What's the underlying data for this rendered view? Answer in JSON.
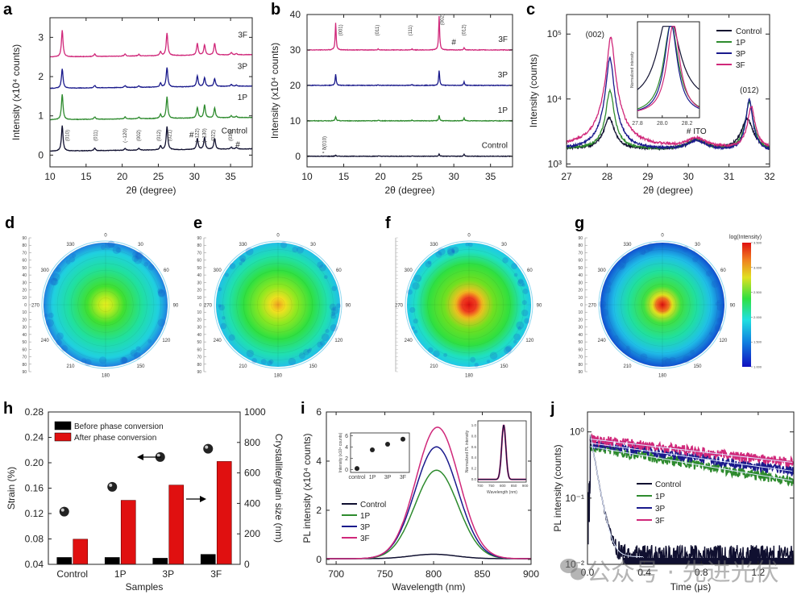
{
  "figure": {
    "watermark": "公众号 · 先进光伏",
    "panel_letters": [
      "a",
      "b",
      "c",
      "d",
      "e",
      "f",
      "g",
      "h",
      "i",
      "j"
    ]
  },
  "colors": {
    "Control": "#101030",
    "1P": "#2e8b2e",
    "3P": "#1a1a8c",
    "3F": "#d0287a",
    "bar_before": "#000000",
    "bar_after": "#e01010"
  },
  "chart_data": [
    {
      "id": "a",
      "type": "line",
      "title": "",
      "xlabel": "2θ (degree)",
      "ylabel": "Intensity (x10⁴ counts)",
      "xlim": [
        10,
        38
      ],
      "ylim": [
        -0.3,
        3.5
      ],
      "xticks": [
        10,
        15,
        20,
        25,
        30,
        35
      ],
      "yticks": [
        0,
        1,
        2,
        3
      ],
      "peaks_2theta": [
        11.7,
        16.2,
        20.4,
        22.3,
        25.3,
        26.2,
        30.4,
        31.4,
        32.8,
        35.1,
        35.8
      ],
      "series": [
        {
          "name": "Control",
          "baseline": 0.1,
          "peak_heights": [
            0.65,
            0.07,
            0.05,
            0.05,
            0.1,
            0.6,
            0.28,
            0.3,
            0.28,
            0.05,
            0.04
          ],
          "label": "Control"
        },
        {
          "name": "1P",
          "baseline": 0.9,
          "peak_heights": [
            0.65,
            0.06,
            0.05,
            0.04,
            0.1,
            0.55,
            0.27,
            0.33,
            0.25,
            0.05,
            0.03
          ],
          "label": "1P"
        },
        {
          "name": "3P",
          "baseline": 1.7,
          "peak_heights": [
            0.5,
            0.06,
            0.05,
            0.04,
            0.1,
            0.5,
            0.27,
            0.22,
            0.2,
            0.05,
            0.03
          ],
          "label": "3P"
        },
        {
          "name": "3F",
          "baseline": 2.5,
          "peak_heights": [
            0.68,
            0.06,
            0.05,
            0.04,
            0.1,
            0.58,
            0.3,
            0.26,
            0.3,
            0.06,
            0.03
          ],
          "label": "3F"
        }
      ],
      "annotations": [
        {
          "x": 12.6,
          "text": "(010)"
        },
        {
          "x": 16.5,
          "text": "(011)"
        },
        {
          "x": 20.6,
          "text": "(−120)"
        },
        {
          "x": 22.5,
          "text": "(002)"
        },
        {
          "x": 25.3,
          "text": "(012)"
        },
        {
          "x": 26.8,
          "text": "(021)"
        },
        {
          "x": 29.6,
          "text": "#"
        },
        {
          "x": 30.6,
          "text": "(−122)"
        },
        {
          "x": 31.6,
          "text": "(−130)"
        },
        {
          "x": 32.8,
          "text": "(022)"
        },
        {
          "x": 35.2,
          "text": "(030)"
        },
        {
          "x": 36.0,
          "text": "#"
        }
      ]
    },
    {
      "id": "b",
      "type": "line",
      "title": "",
      "xlabel": "2θ (degree)",
      "ylabel": "Intensity (x10⁴ counts)",
      "xlim": [
        10,
        38
      ],
      "ylim": [
        -3,
        40
      ],
      "xticks": [
        10,
        15,
        20,
        25,
        30,
        35
      ],
      "yticks": [
        0,
        10,
        20,
        30,
        40
      ],
      "peaks_2theta": [
        13.9,
        19.7,
        24.3,
        28.0,
        31.4
      ],
      "series": [
        {
          "name": "Control",
          "baseline": 0,
          "peak_heights": [
            0.3,
            0.1,
            0.1,
            0.6,
            0.6
          ],
          "label": "Control"
        },
        {
          "name": "1P",
          "baseline": 10,
          "peak_heights": [
            1.2,
            0.2,
            0.2,
            1.5,
            0.8
          ],
          "label": "1P"
        },
        {
          "name": "3P",
          "baseline": 20,
          "peak_heights": [
            3.2,
            0.2,
            0.3,
            4.2,
            1.0
          ],
          "label": "3P"
        },
        {
          "name": "3F",
          "baseline": 30,
          "peak_heights": [
            7.6,
            0.3,
            0.3,
            9.5,
            0.7
          ],
          "label": "3F"
        }
      ],
      "annotations": [
        {
          "x": 12.6,
          "text": "* δ(010)"
        },
        {
          "x": 14.8,
          "text": "(001)"
        },
        {
          "x": 19.8,
          "text": "(011)"
        },
        {
          "x": 24.3,
          "text": "(111)"
        },
        {
          "x": 28.6,
          "text": "(002)"
        },
        {
          "x": 30.0,
          "text": "#"
        },
        {
          "x": 31.6,
          "text": "(012)"
        }
      ]
    },
    {
      "id": "c",
      "type": "line",
      "title": "",
      "xlabel": "2θ (degree)",
      "ylabel": "Intensity (counts)",
      "yscale": "log",
      "xlim": [
        27,
        32
      ],
      "ylim": [
        900,
        200000
      ],
      "xticks": [
        27,
        28,
        29,
        30,
        31,
        32
      ],
      "yticks": [
        "10³",
        "10⁴",
        "10⁵"
      ],
      "legend": {
        "position": "top-right",
        "entries": [
          "Control",
          "1P",
          "3P",
          "3F"
        ]
      },
      "series": [
        {
          "name": "Control",
          "peak_002": {
            "x": 28.05,
            "y": 5000,
            "width": 0.12
          },
          "peak_012": {
            "x": 31.45,
            "y": 4800,
            "width": 0.14
          },
          "background": 1500
        },
        {
          "name": "1P",
          "peak_002": {
            "x": 28.07,
            "y": 13500,
            "width": 0.08
          },
          "peak_012": {
            "x": 31.5,
            "y": 9000,
            "width": 0.08
          },
          "background": 1500
        },
        {
          "name": "3P",
          "peak_002": {
            "x": 28.07,
            "y": 43000,
            "width": 0.07
          },
          "peak_012": {
            "x": 31.5,
            "y": 9600,
            "width": 0.07
          },
          "background": 1450
        },
        {
          "name": "3F",
          "peak_002": {
            "x": 28.09,
            "y": 90000,
            "width": 0.07
          },
          "peak_012": {
            "x": 31.55,
            "y": 7500,
            "width": 0.08
          },
          "background": 1600
        }
      ],
      "ito_peak": {
        "x": 30.2,
        "y": 2200
      },
      "annotations": [
        {
          "x": 27.7,
          "text": "(002)"
        },
        {
          "x": 30.2,
          "text": "# ITO"
        },
        {
          "x": 31.5,
          "text": "(012)"
        }
      ],
      "inset": {
        "xlabel": "",
        "ylabel": "Normalized intensity",
        "xlim": [
          27.8,
          28.3
        ],
        "xticks": [
          "27.8",
          "28.0",
          "28.2"
        ]
      }
    },
    {
      "id": "d",
      "type": "heatmap",
      "subtype": "polar pole figure",
      "angle_ticks": [
        0,
        30,
        60,
        90,
        120,
        150,
        180,
        210,
        240,
        270,
        300,
        330
      ],
      "radial_ticks": [
        90,
        80,
        70,
        60,
        50,
        40,
        30,
        20,
        10,
        0,
        10,
        20,
        30,
        40,
        50,
        60,
        70,
        80,
        90
      ],
      "center_log_intensity": 2.4
    },
    {
      "id": "e",
      "type": "heatmap",
      "subtype": "polar pole figure",
      "angle_ticks": [
        0,
        30,
        60,
        90,
        120,
        150,
        180,
        210,
        240,
        270,
        300,
        330
      ],
      "radial_ticks": [
        90,
        80,
        70,
        60,
        50,
        40,
        30,
        20,
        10,
        0,
        10,
        20,
        30,
        40,
        50,
        60,
        70,
        80,
        90
      ],
      "center_log_intensity": 2.6
    },
    {
      "id": "f",
      "type": "heatmap",
      "subtype": "polar pole figure",
      "angle_ticks": [
        0,
        30,
        60,
        90,
        120,
        150,
        180,
        210,
        240,
        270,
        300,
        330
      ],
      "radial_ticks": [],
      "center_log_intensity": 3.0
    },
    {
      "id": "g",
      "type": "heatmap",
      "subtype": "polar pole figure",
      "angle_ticks": [
        0,
        30,
        60,
        90,
        120,
        150,
        180,
        210,
        240,
        270,
        300,
        330
      ],
      "radial_ticks": [
        90,
        80,
        70,
        60,
        50,
        40,
        30,
        20,
        10,
        0,
        10,
        20,
        30,
        40,
        50,
        60,
        70,
        80,
        90
      ],
      "center_log_intensity": 3.0,
      "colorbar": {
        "title": "log(Intensity)",
        "ticks": [
          "1.000",
          "1.500",
          "2.000",
          "2.500",
          "3.000",
          "3.500"
        ],
        "range": [
          1.0,
          3.5
        ]
      }
    },
    {
      "id": "h",
      "type": "bar",
      "xlabel": "Samples",
      "ylabel": "Strain (%)",
      "ylabel_right": "Crystallite/grain size (nm)",
      "categories": [
        "Control",
        "1P",
        "3P",
        "3F"
      ],
      "ylim": [
        0.04,
        0.28
      ],
      "yticks": [
        "0.04",
        "0.08",
        "0.12",
        "0.16",
        "0.20",
        "0.24",
        "0.28"
      ],
      "ylim_right": [
        0,
        1000
      ],
      "yticks_right": [
        "0",
        "200",
        "400",
        "600",
        "800",
        "1000"
      ],
      "series": [
        {
          "name": "Before phase conversion",
          "axis": "right",
          "values": [
            45,
            45,
            40,
            65
          ]
        },
        {
          "name": "After phase conversion",
          "axis": "right",
          "values": [
            165,
            420,
            520,
            675
          ]
        }
      ],
      "scatter": {
        "name": "Strain",
        "axis": "left",
        "values": [
          0.123,
          0.162,
          0.209,
          0.222
        ]
      },
      "legend": {
        "position": "top-left",
        "entries": [
          "Before phase conversion",
          "After phase conversion"
        ]
      }
    },
    {
      "id": "i",
      "type": "line",
      "xlabel": "Wavelength (nm)",
      "ylabel": "PL intensity (x10⁴ counts)",
      "xlim": [
        690,
        900
      ],
      "ylim": [
        -0.2,
        6
      ],
      "xticks": [
        700,
        750,
        800,
        850,
        900
      ],
      "yticks": [
        0,
        2,
        4,
        6
      ],
      "legend": {
        "position": "center-left",
        "entries": [
          "Control",
          "1P",
          "3P",
          "3F"
        ]
      },
      "series": [
        {
          "name": "Control",
          "peak_x": 800,
          "peak_y": 0.18,
          "fwhm": 55
        },
        {
          "name": "1P",
          "peak_x": 803,
          "peak_y": 3.6,
          "fwhm": 52
        },
        {
          "name": "3P",
          "peak_x": 803,
          "peak_y": 4.55,
          "fwhm": 52
        },
        {
          "name": "3F",
          "peak_x": 804,
          "peak_y": 5.35,
          "fwhm": 52
        }
      ],
      "inset_left": {
        "type": "scatter",
        "ylabel": "Intensity (x10⁶ counts)",
        "categories": [
          "control",
          "1P",
          "3P",
          "3F"
        ],
        "values": [
          0.2,
          3.5,
          4.5,
          5.4
        ],
        "ylim": [
          -0.5,
          6.5
        ],
        "yticks": [
          "0",
          "2",
          "4",
          "6"
        ]
      },
      "inset_right": {
        "type": "line",
        "xlabel": "Wavelength (nm)",
        "ylabel": "Normalized PL intensity",
        "xticks": [
          "700",
          "750",
          "800",
          "850",
          "900"
        ],
        "yticks": [
          "0.0",
          "0.2",
          "0.4",
          "0.6",
          "0.8",
          "1.0"
        ],
        "peak_x": 805
      }
    },
    {
      "id": "j",
      "type": "line",
      "xlabel": "Time (μs)",
      "ylabel": "PL intensity (counts)",
      "yscale": "log",
      "xlim": [
        0,
        1.45
      ],
      "ylim": [
        0.01,
        2
      ],
      "xticks": [
        "0.0",
        "0.4",
        "0.8",
        "1.2"
      ],
      "yticks": [
        "10⁻²",
        "10⁻¹",
        "10⁰"
      ],
      "legend": {
        "position": "center",
        "entries": [
          "Control",
          "1P",
          "3P",
          "3F"
        ]
      },
      "series": [
        {
          "name": "Control",
          "start": 0.9,
          "tau_us": 0.035,
          "floor": 0.013
        },
        {
          "name": "1P",
          "start": 0.6,
          "end": 0.2,
          "tau_us": 1.2
        },
        {
          "name": "3P",
          "start": 0.68,
          "end": 0.27,
          "tau_us": 1.45
        },
        {
          "name": "3F",
          "start": 0.78,
          "end": 0.36,
          "tau_us": 1.75
        }
      ]
    }
  ]
}
